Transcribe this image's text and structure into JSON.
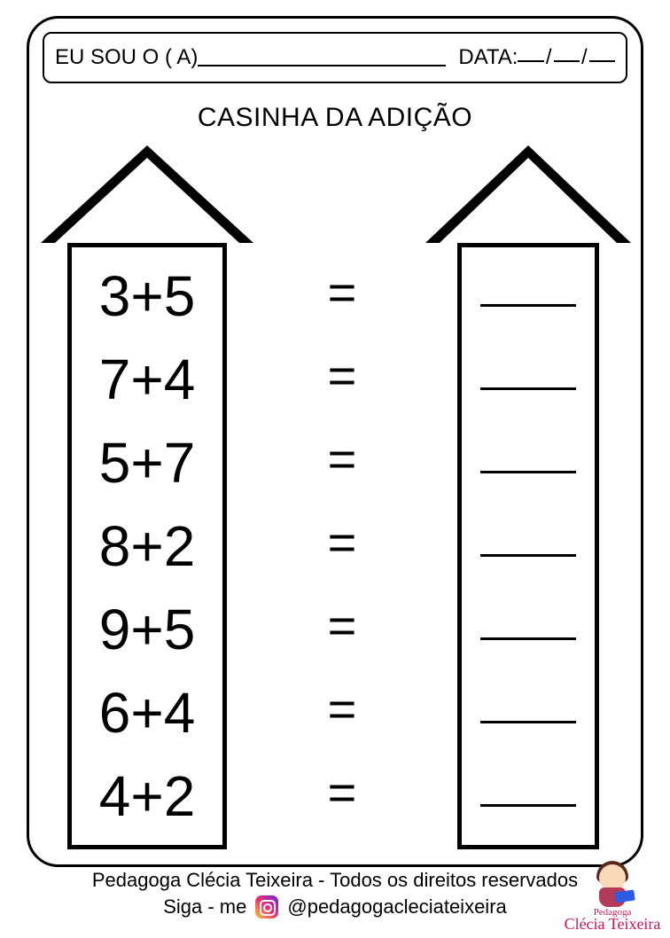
{
  "header": {
    "name_label": "EU SOU O ( A)",
    "date_label": "DATA:",
    "slash": "/"
  },
  "title": "CASINHA DA ADIÇÃO",
  "equals_sign": "=",
  "problems": [
    "3+5",
    "7+4",
    "5+7",
    "8+2",
    "9+5",
    "6+4",
    "4+2"
  ],
  "footer": {
    "line1": "Pedagoga Clécia Teixeira - Todos os direitos reservados",
    "line2_prefix": "Siga - me",
    "handle": "@pedagogacleciateixeira"
  },
  "logo": {
    "small": "Pedagoga",
    "name": "Clécia Teixeira"
  },
  "colors": {
    "border": "#000000",
    "background": "#ffffff",
    "logo_pink": "#c5175b"
  }
}
